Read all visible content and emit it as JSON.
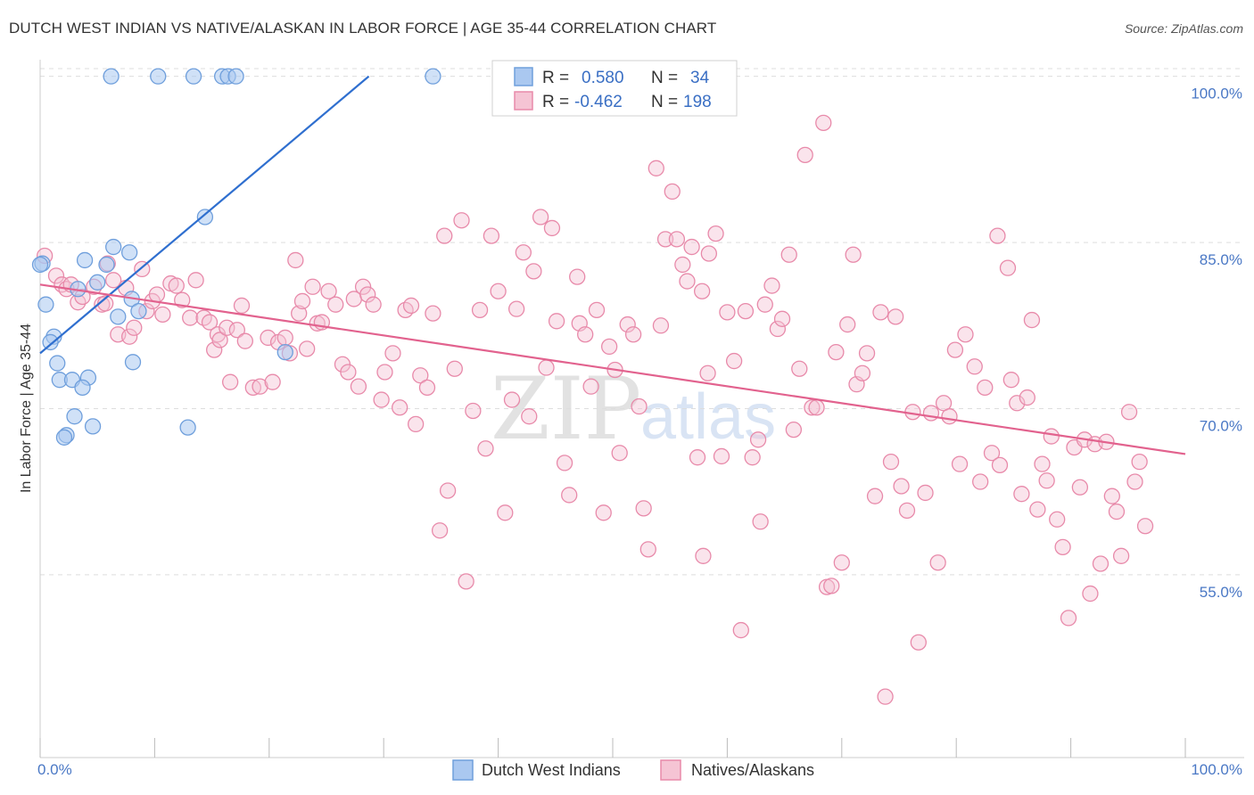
{
  "header": {
    "title": "DUTCH WEST INDIAN VS NATIVE/ALASKAN IN LABOR FORCE | AGE 35-44 CORRELATION CHART",
    "source": "Source: ZipAtlas.com"
  },
  "watermark": {
    "zip": "ZIP",
    "atlas": "atlas"
  },
  "legend": {
    "rows": [
      {
        "r_label": "R =",
        "r_value": "0.580",
        "n_label": "N =",
        "n_value": "34"
      },
      {
        "r_label": "R =",
        "r_value": "-0.462",
        "n_label": "N =",
        "n_value": "198"
      }
    ]
  },
  "bottom_legend": [
    "Dutch West Indians",
    "Natives/Alaskans"
  ],
  "colors": {
    "blue_fill": "#aac8f0",
    "blue_stroke": "#6f9fdc",
    "blue_line": "#2f6fcf",
    "pink_fill": "#f5c4d4",
    "pink_stroke": "#e88aaa",
    "pink_line": "#e2628e",
    "tick_text": "#4a78c5",
    "grid": "#dddddd"
  },
  "chart_data": {
    "type": "scatter",
    "title": "DUTCH WEST INDIAN VS NATIVE/ALASKAN IN LABOR FORCE | AGE 35-44 CORRELATION CHART",
    "xlabel": "",
    "ylabel": "In Labor Force | Age 35-44",
    "xlim": [
      0,
      100
    ],
    "ylim": [
      38.5,
      101.5
    ],
    "x_tick_labels": [
      "0.0%",
      "100.0%"
    ],
    "y_ticks": [
      55,
      70,
      85,
      100
    ],
    "y_tick_labels": [
      "55.0%",
      "70.0%",
      "85.0%",
      "100.0%"
    ],
    "series": [
      {
        "name": "Dutch West Indians",
        "R": 0.58,
        "N": 34,
        "trend": {
          "x": [
            0,
            28.7
          ],
          "y": [
            75.0,
            100.0
          ]
        },
        "points": [
          [
            6.2,
            100
          ],
          [
            10.3,
            100
          ],
          [
            13.4,
            100
          ],
          [
            15.9,
            100
          ],
          [
            16.4,
            100
          ],
          [
            17.1,
            100
          ],
          [
            34.3,
            100
          ],
          [
            14.4,
            87.3
          ],
          [
            6.4,
            84.6
          ],
          [
            7.8,
            84.1
          ],
          [
            3.9,
            83.4
          ],
          [
            5.8,
            83.0
          ],
          [
            0.2,
            83.1
          ],
          [
            5.0,
            81.4
          ],
          [
            3.3,
            80.8
          ],
          [
            8.0,
            79.9
          ],
          [
            0.5,
            79.4
          ],
          [
            8.6,
            78.8
          ],
          [
            6.8,
            78.3
          ],
          [
            1.2,
            76.5
          ],
          [
            0.9,
            76.0
          ],
          [
            21.4,
            75.1
          ],
          [
            8.1,
            74.2
          ],
          [
            1.5,
            74.1
          ],
          [
            4.2,
            72.8
          ],
          [
            1.7,
            72.6
          ],
          [
            2.8,
            72.6
          ],
          [
            3.7,
            71.9
          ],
          [
            3.0,
            69.3
          ],
          [
            4.6,
            68.4
          ],
          [
            12.9,
            68.3
          ],
          [
            2.3,
            67.6
          ],
          [
            2.1,
            67.4
          ],
          [
            0.0,
            83.0
          ]
        ]
      },
      {
        "name": "Natives/Alaskans",
        "R": -0.462,
        "N": 198,
        "trend": {
          "x": [
            0,
            100
          ],
          "y": [
            81.2,
            65.9
          ]
        },
        "points": [
          [
            0.4,
            83.8
          ],
          [
            1.4,
            82.0
          ],
          [
            1.9,
            81.2
          ],
          [
            2.3,
            80.8
          ],
          [
            2.7,
            81.2
          ],
          [
            3.3,
            79.6
          ],
          [
            3.7,
            80.1
          ],
          [
            4.7,
            81.0
          ],
          [
            5.4,
            79.4
          ],
          [
            5.9,
            83.1
          ],
          [
            6.4,
            81.6
          ],
          [
            5.7,
            79.5
          ],
          [
            6.8,
            76.7
          ],
          [
            7.5,
            80.9
          ],
          [
            7.8,
            76.5
          ],
          [
            8.2,
            77.3
          ],
          [
            8.9,
            82.6
          ],
          [
            9.3,
            78.8
          ],
          [
            9.8,
            79.7
          ],
          [
            10.2,
            80.3
          ],
          [
            10.7,
            78.5
          ],
          [
            11.4,
            81.3
          ],
          [
            11.9,
            81.1
          ],
          [
            12.4,
            79.8
          ],
          [
            13.1,
            78.2
          ],
          [
            13.6,
            81.6
          ],
          [
            14.3,
            78.2
          ],
          [
            14.8,
            77.8
          ],
          [
            15.2,
            75.3
          ],
          [
            15.5,
            76.7
          ],
          [
            15.7,
            76.2
          ],
          [
            16.3,
            77.3
          ],
          [
            16.6,
            72.4
          ],
          [
            17.2,
            77.1
          ],
          [
            17.6,
            79.3
          ],
          [
            17.9,
            76.1
          ],
          [
            18.6,
            71.9
          ],
          [
            19.2,
            72.0
          ],
          [
            19.9,
            76.4
          ],
          [
            20.3,
            72.4
          ],
          [
            20.8,
            76.0
          ],
          [
            21.4,
            76.4
          ],
          [
            21.8,
            75.0
          ],
          [
            22.3,
            83.4
          ],
          [
            22.6,
            78.6
          ],
          [
            22.9,
            79.7
          ],
          [
            23.3,
            75.4
          ],
          [
            23.8,
            81.0
          ],
          [
            24.2,
            77.7
          ],
          [
            24.6,
            77.8
          ],
          [
            25.2,
            80.6
          ],
          [
            25.8,
            79.4
          ],
          [
            26.4,
            74.0
          ],
          [
            26.9,
            73.3
          ],
          [
            27.4,
            79.9
          ],
          [
            27.8,
            72.0
          ],
          [
            28.2,
            81.0
          ],
          [
            28.6,
            80.3
          ],
          [
            29.1,
            79.4
          ],
          [
            29.8,
            70.8
          ],
          [
            30.1,
            73.3
          ],
          [
            30.8,
            75.0
          ],
          [
            31.4,
            70.1
          ],
          [
            31.9,
            78.9
          ],
          [
            32.4,
            79.3
          ],
          [
            32.8,
            68.6
          ],
          [
            33.2,
            73.0
          ],
          [
            33.8,
            71.9
          ],
          [
            34.3,
            78.6
          ],
          [
            34.9,
            59.0
          ],
          [
            35.3,
            85.6
          ],
          [
            35.6,
            62.6
          ],
          [
            36.2,
            73.6
          ],
          [
            36.8,
            87.0
          ],
          [
            37.2,
            54.4
          ],
          [
            37.8,
            69.8
          ],
          [
            38.4,
            78.9
          ],
          [
            38.9,
            66.4
          ],
          [
            39.4,
            85.6
          ],
          [
            40.0,
            80.6
          ],
          [
            40.6,
            60.6
          ],
          [
            41.2,
            70.8
          ],
          [
            41.6,
            79.0
          ],
          [
            42.2,
            84.1
          ],
          [
            42.7,
            69.3
          ],
          [
            43.1,
            82.4
          ],
          [
            43.7,
            87.3
          ],
          [
            44.2,
            73.7
          ],
          [
            44.7,
            86.3
          ],
          [
            45.1,
            77.9
          ],
          [
            45.8,
            65.1
          ],
          [
            46.2,
            62.2
          ],
          [
            46.9,
            81.9
          ],
          [
            47.1,
            77.7
          ],
          [
            47.6,
            76.7
          ],
          [
            48.1,
            72.0
          ],
          [
            48.6,
            78.9
          ],
          [
            49.2,
            60.6
          ],
          [
            49.7,
            75.6
          ],
          [
            50.2,
            73.5
          ],
          [
            50.6,
            66.0
          ],
          [
            51.3,
            77.6
          ],
          [
            51.8,
            76.7
          ],
          [
            52.3,
            70.2
          ],
          [
            52.7,
            61.0
          ],
          [
            53.1,
            57.3
          ],
          [
            53.8,
            91.7
          ],
          [
            54.2,
            77.5
          ],
          [
            54.6,
            85.3
          ],
          [
            55.2,
            89.6
          ],
          [
            55.6,
            85.3
          ],
          [
            56.1,
            83.0
          ],
          [
            56.5,
            81.5
          ],
          [
            56.9,
            84.6
          ],
          [
            57.4,
            65.6
          ],
          [
            57.9,
            56.7
          ],
          [
            58.4,
            84.0
          ],
          [
            59.0,
            85.8
          ],
          [
            59.5,
            65.7
          ],
          [
            60.0,
            78.7
          ],
          [
            60.6,
            74.3
          ],
          [
            61.2,
            50.0
          ],
          [
            61.6,
            78.8
          ],
          [
            62.2,
            65.6
          ],
          [
            62.7,
            67.2
          ],
          [
            63.3,
            79.4
          ],
          [
            63.9,
            81.1
          ],
          [
            64.4,
            77.2
          ],
          [
            64.8,
            78.1
          ],
          [
            65.4,
            83.9
          ],
          [
            65.8,
            68.1
          ],
          [
            66.3,
            73.6
          ],
          [
            66.8,
            92.9
          ],
          [
            67.4,
            70.1
          ],
          [
            67.8,
            70.1
          ],
          [
            68.4,
            95.8
          ],
          [
            68.7,
            53.9
          ],
          [
            69.1,
            54.0
          ],
          [
            69.5,
            75.1
          ],
          [
            70.0,
            56.1
          ],
          [
            70.5,
            77.6
          ],
          [
            71.0,
            83.9
          ],
          [
            71.3,
            72.2
          ],
          [
            71.8,
            73.2
          ],
          [
            72.2,
            75.0
          ],
          [
            72.9,
            62.1
          ],
          [
            73.4,
            78.7
          ],
          [
            73.8,
            44.0
          ],
          [
            74.3,
            65.2
          ],
          [
            74.7,
            78.3
          ],
          [
            75.2,
            63.0
          ],
          [
            75.7,
            60.8
          ],
          [
            76.2,
            69.7
          ],
          [
            76.7,
            48.9
          ],
          [
            77.3,
            62.4
          ],
          [
            77.8,
            69.6
          ],
          [
            78.4,
            56.1
          ],
          [
            78.9,
            70.5
          ],
          [
            79.4,
            69.3
          ],
          [
            79.9,
            75.3
          ],
          [
            80.3,
            65.0
          ],
          [
            80.8,
            76.7
          ],
          [
            81.6,
            73.8
          ],
          [
            82.1,
            63.4
          ],
          [
            82.5,
            71.9
          ],
          [
            83.1,
            66.0
          ],
          [
            83.6,
            85.6
          ],
          [
            83.8,
            64.9
          ],
          [
            84.5,
            82.7
          ],
          [
            84.8,
            72.6
          ],
          [
            85.3,
            70.5
          ],
          [
            85.7,
            62.3
          ],
          [
            86.2,
            71.0
          ],
          [
            86.6,
            78.0
          ],
          [
            87.1,
            60.9
          ],
          [
            87.5,
            65.0
          ],
          [
            87.9,
            63.5
          ],
          [
            88.3,
            67.5
          ],
          [
            88.8,
            60.0
          ],
          [
            89.3,
            57.5
          ],
          [
            89.8,
            51.1
          ],
          [
            90.3,
            66.5
          ],
          [
            90.8,
            62.9
          ],
          [
            91.2,
            67.2
          ],
          [
            91.7,
            53.3
          ],
          [
            92.1,
            66.8
          ],
          [
            92.6,
            56.0
          ],
          [
            93.1,
            67.0
          ],
          [
            93.6,
            62.1
          ],
          [
            94.0,
            60.7
          ],
          [
            94.4,
            56.7
          ],
          [
            95.1,
            69.7
          ],
          [
            95.6,
            63.4
          ],
          [
            96.0,
            65.2
          ],
          [
            96.5,
            59.4
          ],
          [
            57.8,
            80.6
          ],
          [
            58.3,
            73.2
          ],
          [
            62.9,
            59.8
          ]
        ]
      }
    ]
  }
}
